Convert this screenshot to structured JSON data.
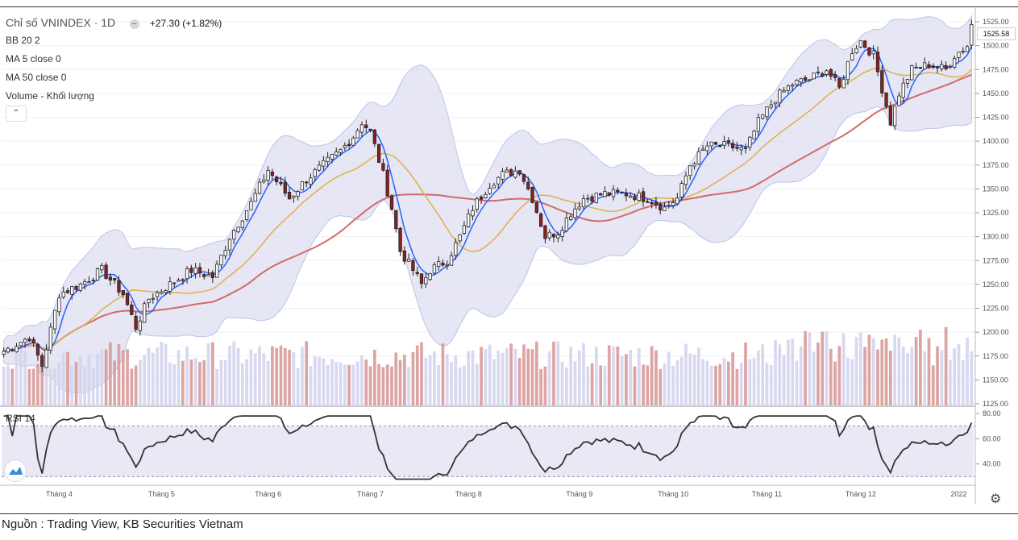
{
  "legend": {
    "title": "Chỉ số VNINDEX · 1D",
    "change": "+27.30 (+1.82%)",
    "indicators": [
      "BB 20 2",
      "MA 5 close 0",
      "MA 50 close 0",
      "Volume - Khối lượng"
    ],
    "rsi_label": "RSI 14"
  },
  "source": "Nguồn : Trading View, KB Securities Vietnam",
  "last_price_label": "1525.58",
  "colors": {
    "up": "#ffffff",
    "down": "#8b2020",
    "bb_band": "#dcdcf0",
    "ma5": "#2962ff",
    "ma20": "#e0b04a",
    "ma50": "#d46a6a",
    "vol_up": "#d4d4ee",
    "vol_down": "#d99a9a",
    "rsi": "#333333"
  },
  "chart_data": {
    "type": "candlestick",
    "price_axis": {
      "min": 1125,
      "max": 1525,
      "ticks": [
        "1525.00",
        "1500.00",
        "1475.00",
        "1450.00",
        "1425.00",
        "1400.00",
        "1375.00",
        "1350.00",
        "1325.00",
        "1300.00",
        "1275.00",
        "1250.00",
        "1225.00",
        "1200.00",
        "1175.00",
        "1150.00",
        "1125.00"
      ]
    },
    "rsi_axis": {
      "ticks": [
        "80.00",
        "60.00",
        "40.00"
      ],
      "bands": [
        70,
        30
      ]
    },
    "x_labels": [
      {
        "label": "Tháng 4",
        "index": 13
      },
      {
        "label": "Tháng 5",
        "index": 37
      },
      {
        "label": "Tháng 6",
        "index": 62
      },
      {
        "label": "Tháng 7",
        "index": 86
      },
      {
        "label": "Tháng 8",
        "index": 109
      },
      {
        "label": "Tháng 9",
        "index": 135
      },
      {
        "label": "Tháng 10",
        "index": 157
      },
      {
        "label": "Tháng 11",
        "index": 179
      },
      {
        "label": "Tháng 12",
        "index": 201
      },
      {
        "label": "2022",
        "index": 224
      }
    ],
    "anchors": [
      [
        0,
        1180
      ],
      [
        6,
        1195
      ],
      [
        9,
        1165
      ],
      [
        13,
        1240
      ],
      [
        18,
        1250
      ],
      [
        23,
        1265
      ],
      [
        28,
        1240
      ],
      [
        31,
        1205
      ],
      [
        34,
        1235
      ],
      [
        39,
        1250
      ],
      [
        44,
        1265
      ],
      [
        49,
        1258
      ],
      [
        53,
        1300
      ],
      [
        58,
        1335
      ],
      [
        62,
        1370
      ],
      [
        67,
        1340
      ],
      [
        71,
        1360
      ],
      [
        75,
        1375
      ],
      [
        79,
        1390
      ],
      [
        82,
        1405
      ],
      [
        84,
        1420
      ],
      [
        86,
        1410
      ],
      [
        89,
        1365
      ],
      [
        91,
        1330
      ],
      [
        93,
        1285
      ],
      [
        96,
        1265
      ],
      [
        98,
        1250
      ],
      [
        100,
        1265
      ],
      [
        104,
        1275
      ],
      [
        107,
        1300
      ],
      [
        110,
        1330
      ],
      [
        114,
        1355
      ],
      [
        117,
        1365
      ],
      [
        121,
        1370
      ],
      [
        124,
        1340
      ],
      [
        127,
        1300
      ],
      [
        130,
        1305
      ],
      [
        133,
        1325
      ],
      [
        136,
        1340
      ],
      [
        141,
        1345
      ],
      [
        146,
        1345
      ],
      [
        151,
        1340
      ],
      [
        155,
        1330
      ],
      [
        158,
        1340
      ],
      [
        161,
        1375
      ],
      [
        165,
        1395
      ],
      [
        170,
        1395
      ],
      [
        174,
        1390
      ],
      [
        177,
        1420
      ],
      [
        181,
        1445
      ],
      [
        185,
        1460
      ],
      [
        189,
        1465
      ],
      [
        193,
        1475
      ],
      [
        196,
        1455
      ],
      [
        199,
        1495
      ],
      [
        201,
        1505
      ],
      [
        204,
        1490
      ],
      [
        206,
        1455
      ],
      [
        208,
        1420
      ],
      [
        210,
        1450
      ],
      [
        213,
        1475
      ],
      [
        217,
        1480
      ],
      [
        221,
        1475
      ],
      [
        223,
        1490
      ],
      [
        226,
        1500
      ],
      [
        227,
        1525
      ]
    ],
    "candle_count": 228
  }
}
